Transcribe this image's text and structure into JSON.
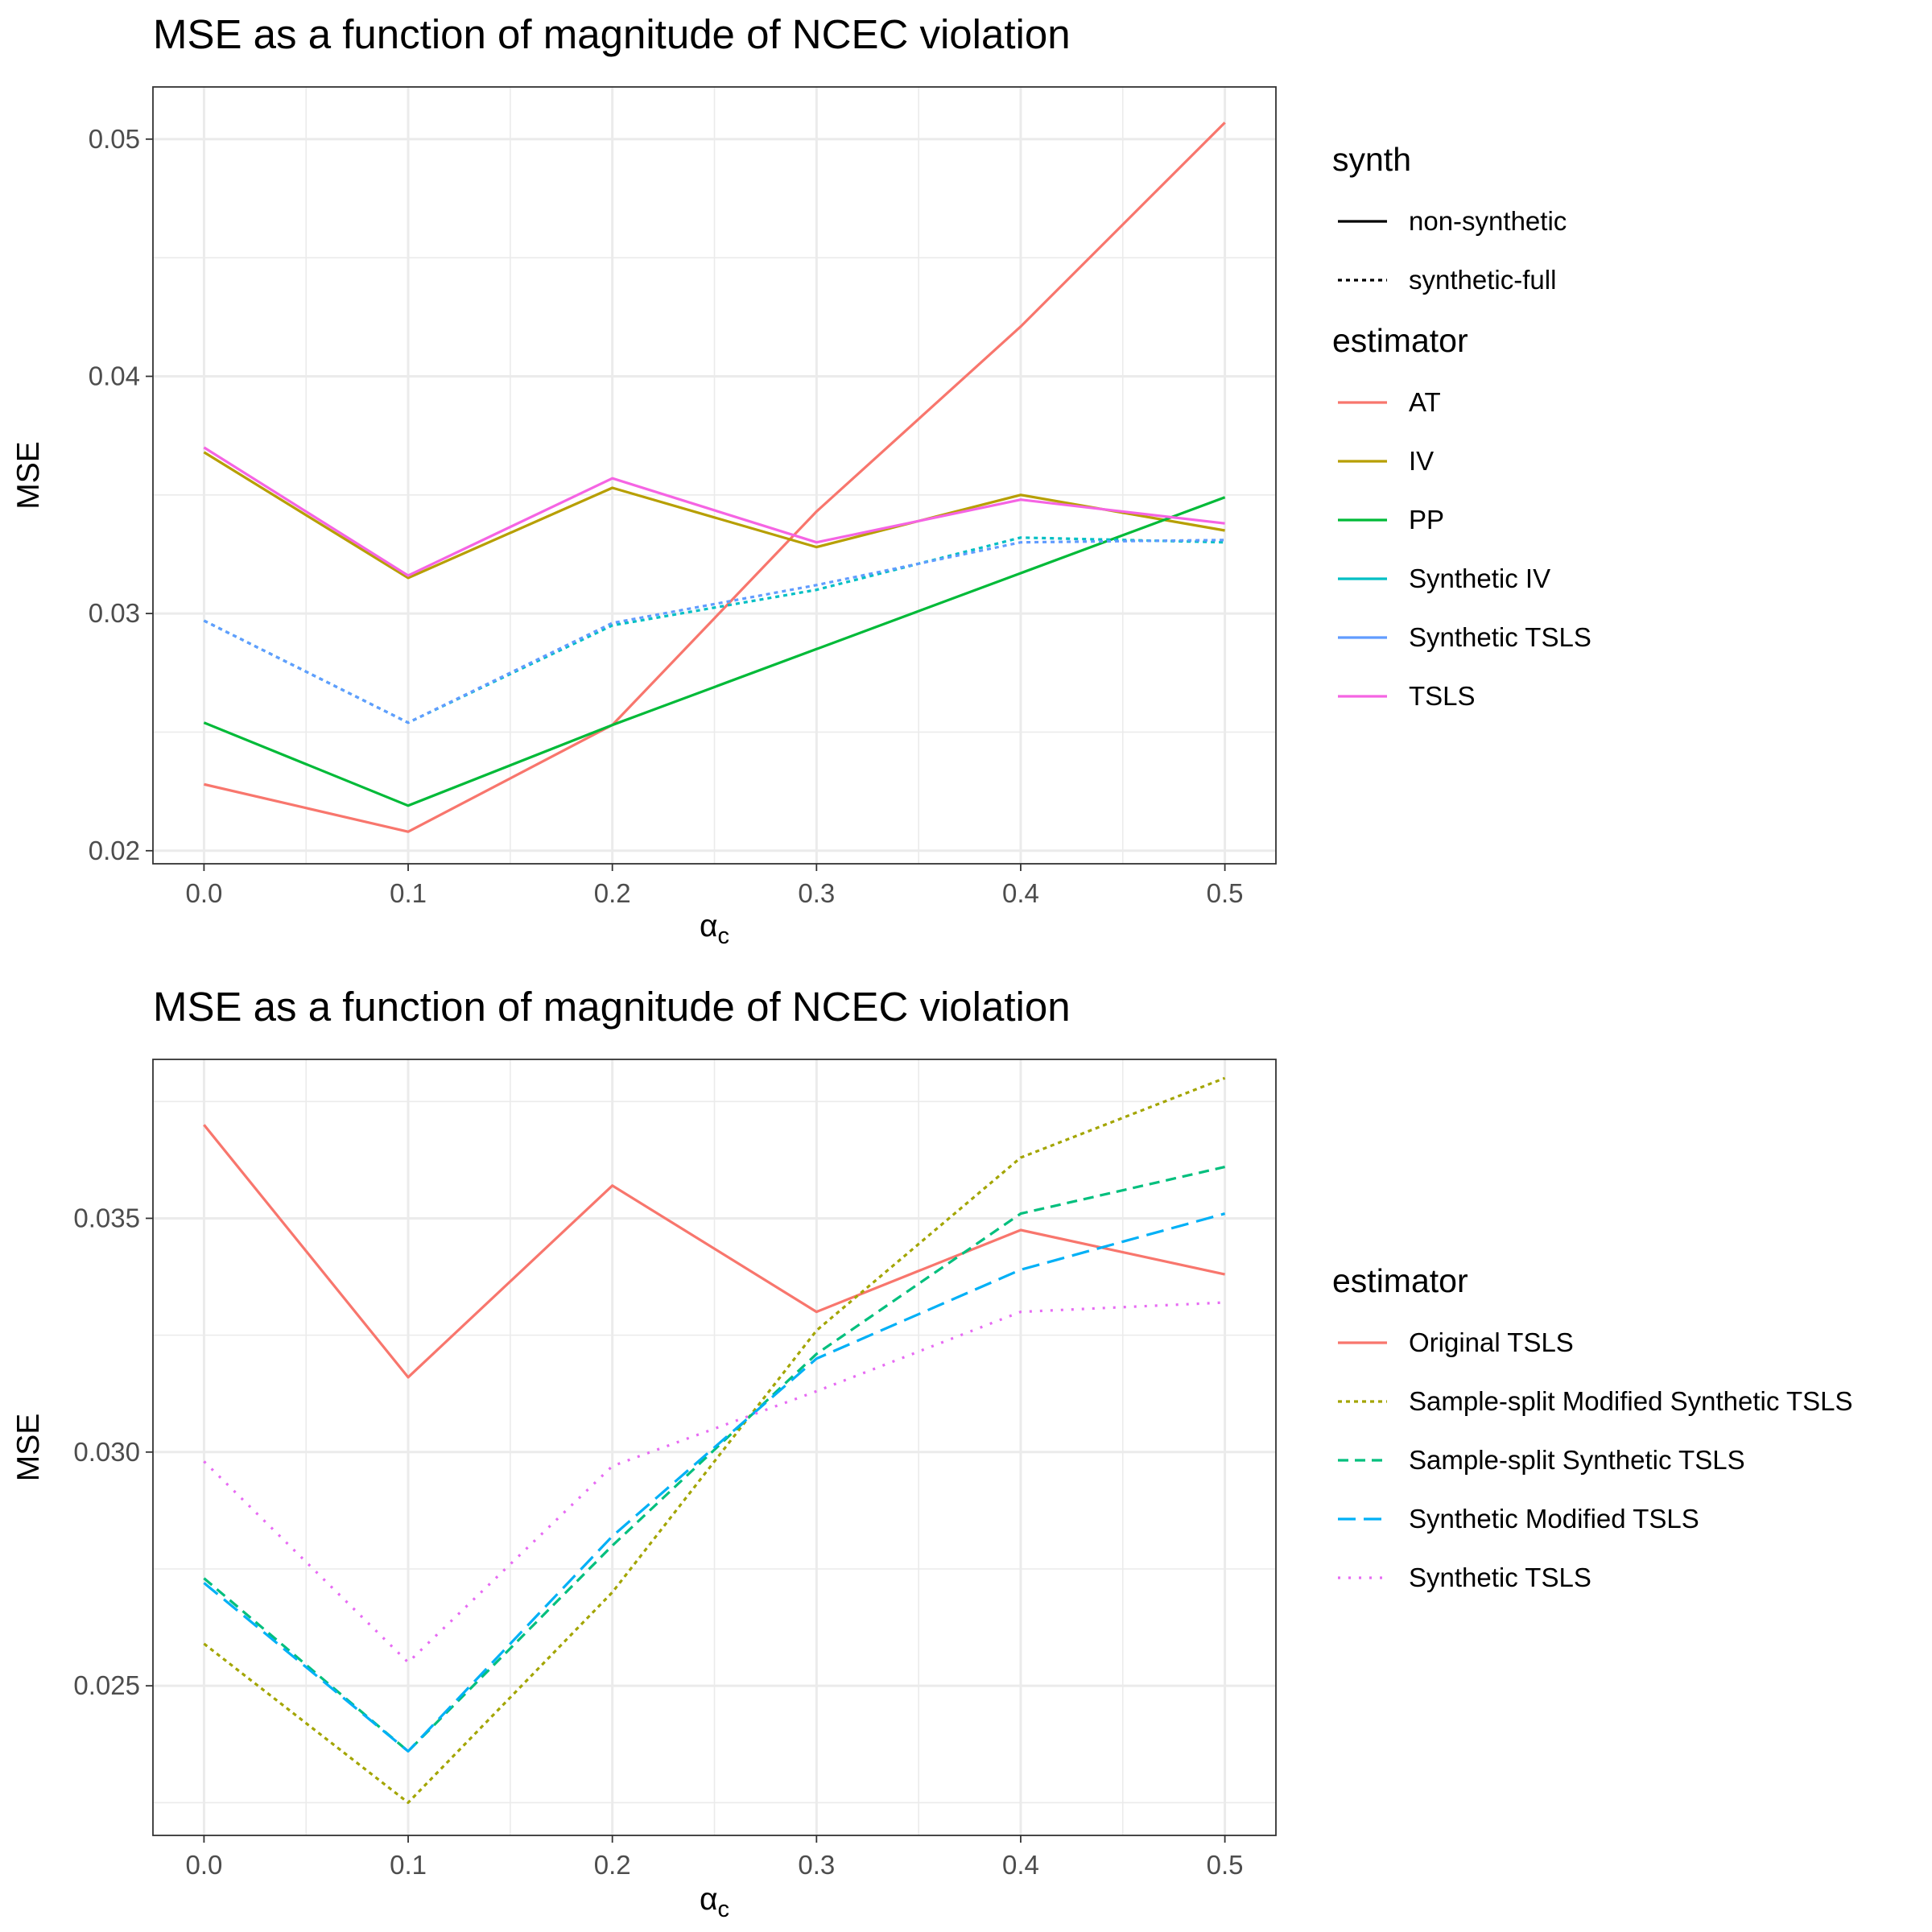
{
  "chart_data": [
    {
      "type": "line",
      "title": "MSE as a function of magnitude of NCEC violation",
      "xlabel": "α",
      "xlabel_sub": "c",
      "ylabel": "MSE",
      "x": [
        0.0,
        0.1,
        0.2,
        0.3,
        0.4,
        0.5
      ],
      "xticks": [
        "0.0",
        "0.1",
        "0.2",
        "0.3",
        "0.4",
        "0.5"
      ],
      "yticks": [
        0.02,
        0.03,
        0.04,
        0.05
      ],
      "ytick_labels": [
        "0.02",
        "0.03",
        "0.04",
        "0.05"
      ],
      "xlim": [
        -0.025,
        0.525
      ],
      "ylim": [
        0.01945,
        0.0522
      ],
      "grid": true,
      "legend_position": "right",
      "legends": [
        {
          "title": "synth",
          "items": [
            {
              "label": "non-synthetic",
              "linetype": "solid",
              "color": "#000000"
            },
            {
              "label": "synthetic-full",
              "linetype": "dotted",
              "color": "#000000"
            }
          ]
        },
        {
          "title": "estimator",
          "items": [
            {
              "label": "AT",
              "color": "#F8766D"
            },
            {
              "label": "IV",
              "color": "#B79F00"
            },
            {
              "label": "PP",
              "color": "#00BA38"
            },
            {
              "label": "Synthetic IV",
              "color": "#00BFC4"
            },
            {
              "label": "Synthetic TSLS",
              "color": "#619CFF"
            },
            {
              "label": "TSLS",
              "color": "#F564E3"
            }
          ]
        }
      ],
      "series": [
        {
          "name": "AT",
          "synth": "non-synthetic",
          "color": "#F8766D",
          "linetype": "solid",
          "values": [
            0.0228,
            0.0208,
            0.0253,
            0.0343,
            0.0421,
            0.0507
          ]
        },
        {
          "name": "IV",
          "synth": "non-synthetic",
          "color": "#B79F00",
          "linetype": "solid",
          "values": [
            0.0368,
            0.0315,
            0.0353,
            0.0328,
            0.035,
            0.0335
          ]
        },
        {
          "name": "PP",
          "synth": "non-synthetic",
          "color": "#00BA38",
          "linetype": "solid",
          "values": [
            0.0254,
            0.0219,
            0.0253,
            0.0285,
            0.0317,
            0.0349
          ]
        },
        {
          "name": "TSLS",
          "synth": "non-synthetic",
          "color": "#F564E3",
          "linetype": "solid",
          "values": [
            0.037,
            0.0316,
            0.0357,
            0.033,
            0.0348,
            0.0338
          ]
        },
        {
          "name": "Synthetic IV",
          "synth": "synthetic-full",
          "color": "#00BFC4",
          "linetype": "dotted",
          "values": [
            0.0297,
            0.0254,
            0.0295,
            0.031,
            0.0332,
            0.033
          ]
        },
        {
          "name": "Synthetic TSLS",
          "synth": "synthetic-full",
          "color": "#619CFF",
          "linetype": "dotted",
          "values": [
            0.0297,
            0.0254,
            0.0296,
            0.0312,
            0.033,
            0.0331
          ]
        }
      ]
    },
    {
      "type": "line",
      "title": "MSE as a function of magnitude of NCEC violation",
      "xlabel": "α",
      "xlabel_sub": "c",
      "ylabel": "MSE",
      "x": [
        0.0,
        0.1,
        0.2,
        0.3,
        0.4,
        0.5
      ],
      "xticks": [
        "0.0",
        "0.1",
        "0.2",
        "0.3",
        "0.4",
        "0.5"
      ],
      "yticks": [
        0.025,
        0.03,
        0.035
      ],
      "ytick_labels": [
        "0.025",
        "0.030",
        "0.035"
      ],
      "xlim": [
        -0.025,
        0.525
      ],
      "ylim": [
        0.0218,
        0.0384
      ],
      "grid": true,
      "legend_position": "right",
      "legends": [
        {
          "title": "estimator",
          "items": [
            {
              "label": "Original TSLS",
              "color": "#F8766D",
              "linetype": "solid"
            },
            {
              "label": "Sample-split Modified Synthetic TSLS",
              "color": "#A3A500",
              "linetype": "dotted"
            },
            {
              "label": "Sample-split Synthetic TSLS",
              "color": "#00BF7D",
              "linetype": "dashed"
            },
            {
              "label": "Synthetic Modified TSLS",
              "color": "#00B0F6",
              "linetype": "longdash"
            },
            {
              "label": "Synthetic TSLS",
              "color": "#E76BF3",
              "linetype": "dotted-sparse"
            }
          ]
        }
      ],
      "series": [
        {
          "name": "Original TSLS",
          "color": "#F8766D",
          "linetype": "solid",
          "values": [
            0.037,
            0.0316,
            0.0357,
            0.033,
            0.03475,
            0.0338
          ]
        },
        {
          "name": "Sample-split Modified Synthetic TSLS",
          "color": "#A3A500",
          "linetype": "dotted",
          "values": [
            0.0259,
            0.0225,
            0.027,
            0.0326,
            0.0363,
            0.038
          ]
        },
        {
          "name": "Sample-split Synthetic TSLS",
          "color": "#00BF7D",
          "linetype": "dashed",
          "values": [
            0.0273,
            0.0236,
            0.028,
            0.0321,
            0.0351,
            0.0361
          ]
        },
        {
          "name": "Synthetic Modified TSLS",
          "color": "#00B0F6",
          "linetype": "longdash",
          "values": [
            0.0272,
            0.0236,
            0.0282,
            0.032,
            0.0339,
            0.0351
          ]
        },
        {
          "name": "Synthetic TSLS",
          "color": "#E76BF3",
          "linetype": "dotted-sparse",
          "values": [
            0.0298,
            0.0255,
            0.0297,
            0.0313,
            0.033,
            0.0332
          ]
        }
      ]
    }
  ]
}
